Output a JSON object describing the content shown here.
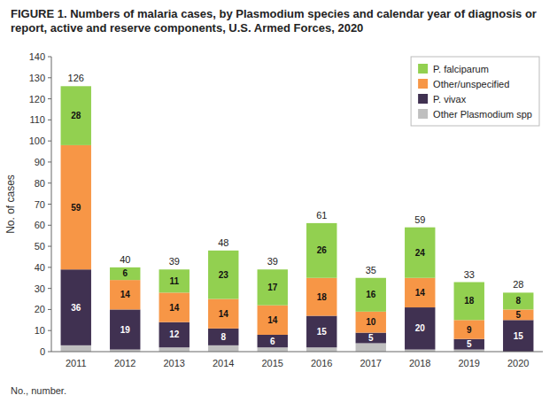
{
  "chart_data": {
    "type": "bar",
    "stacked": true,
    "title": "FIGURE 1. Numbers of malaria cases, by Plasmodium species and calendar year of diagnosis or report, active and reserve components, U.S. Armed Forces, 2020",
    "ylabel": "No. of cases",
    "footnote": "No., number.",
    "categories": [
      "2011",
      "2012",
      "2013",
      "2014",
      "2015",
      "2016",
      "2017",
      "2018",
      "2019",
      "2020"
    ],
    "series": [
      {
        "name": "Other Plasmodium spp",
        "color": "#bfbfbf",
        "values": [
          3,
          1,
          2,
          3,
          2,
          2,
          4,
          1,
          1,
          0
        ],
        "data_labels": false
      },
      {
        "name": "P. vivax",
        "color": "#403151",
        "values": [
          36,
          19,
          12,
          8,
          6,
          15,
          5,
          20,
          5,
          15
        ],
        "data_labels": true
      },
      {
        "name": "Other/unspecified",
        "color": "#f79646",
        "values": [
          59,
          14,
          14,
          14,
          14,
          18,
          10,
          14,
          9,
          5
        ],
        "data_labels": true
      },
      {
        "name": "P. falciparum",
        "color": "#92d050",
        "values": [
          28,
          6,
          11,
          23,
          17,
          26,
          16,
          24,
          18,
          8
        ],
        "data_labels": true
      }
    ],
    "totals": [
      126,
      40,
      39,
      48,
      39,
      61,
      35,
      59,
      33,
      28
    ],
    "ylim": [
      0,
      140
    ],
    "yticks": [
      0,
      10,
      20,
      30,
      40,
      50,
      60,
      70,
      80,
      90,
      100,
      110,
      120,
      130,
      140
    ],
    "grid": false,
    "legend": "upper right",
    "data_labels": true
  }
}
